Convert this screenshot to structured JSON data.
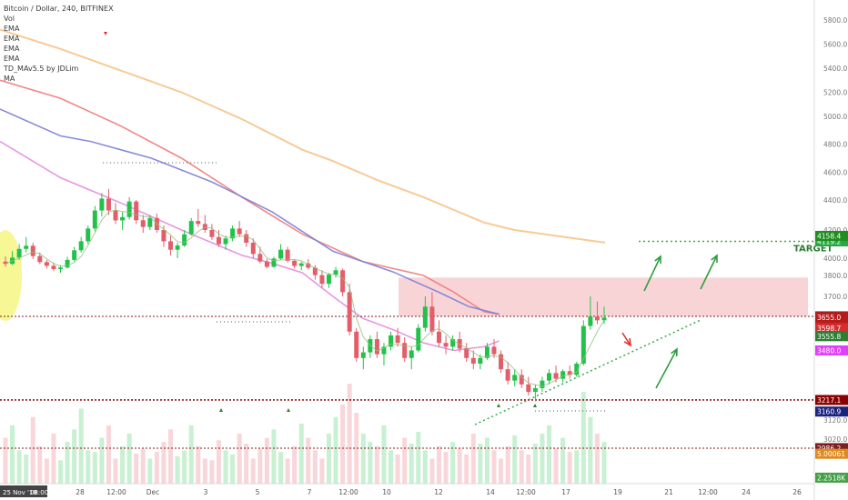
{
  "chart_data": {
    "type": "candlestick",
    "title": "Bitcoin / Dollar, 240, BITFINEX",
    "indicators": [
      "Vol",
      "EMA",
      "EMA",
      "EMA",
      "EMA",
      "TD_MAv5.5 by JDLim",
      "MA"
    ],
    "ylim": [
      2790,
      5950
    ],
    "y_ticks": [
      "5800.0",
      "5600.0",
      "5400.0",
      "5200.0",
      "5000.0",
      "4800.0",
      "4600.0",
      "4400.0",
      "4200.0",
      "4000.0",
      "3800.0",
      "3700.0",
      "3120.0",
      "3020.0"
    ],
    "x_ticks": [
      "28",
      "12:00",
      "Dec",
      "3",
      "5",
      "7",
      "12:00",
      "10",
      "12",
      "14",
      "12:00",
      "17",
      "19",
      "21",
      "12:00",
      "24",
      "26"
    ],
    "x_start_label": "25 Nov '18",
    "x_start_time": "08:00",
    "price_tags": [
      {
        "label": "4119.2",
        "value": 4119.2,
        "color": "#28a745"
      },
      {
        "label": "4158.4",
        "value": 4158.4,
        "color": "#1e8e1e"
      },
      {
        "label": "3661.1",
        "value": 3661.1,
        "color": "#a02020"
      },
      {
        "label": "3658.0",
        "value": 3658.0,
        "color": "#a02020"
      },
      {
        "label": "3655.0",
        "value": 3655.0,
        "color": "#b71c1c"
      },
      {
        "label": "01:43:37",
        "value": 3604,
        "color": "#b71c1c"
      },
      {
        "label": "3598.7",
        "value": 3598.7,
        "color": "#d32f2f"
      },
      {
        "label": "3555.8",
        "value": 3555.8,
        "color": "#2e7d32"
      },
      {
        "label": "3480.0",
        "value": 3480.0,
        "color": "#e040fb"
      },
      {
        "label": "3217.1",
        "value": 3217.1,
        "color": "#8b0000"
      },
      {
        "label": "3160.9",
        "value": 3160.9,
        "color": "#1a237e"
      },
      {
        "label": "2986.2",
        "value": 2986.2,
        "color": "#7b1f1f"
      },
      {
        "label": "5.00061",
        "value": 2955,
        "color": "#e08a1e"
      },
      {
        "label": "2.2518K",
        "value": 2823,
        "color": "#43a047"
      }
    ],
    "horizontal_levels": [
      3661.1,
      3217.1,
      2986.2
    ],
    "resistance_zone": [
      3661,
      3790
    ],
    "target_level": 4119.2,
    "annotations": [
      "TARGET"
    ],
    "colors": {
      "up": "#22c24a",
      "down": "#e35d6a",
      "ema_orange": "#f6c48a",
      "ema_red": "#ef7a7a",
      "ema_blue": "#7b7fd6",
      "ema_pink": "#e58be0",
      "ma_green": "#8ec07c",
      "zone": "#f8c9cd",
      "highlight": "#f3f36a",
      "level_red": "#8b1a1a",
      "arrow_green": "#2e9e3e",
      "arrow_red": "#e03030",
      "dotted_green": "#3aa84a"
    },
    "candles": [
      [
        3960,
        4012,
        3900,
        3934
      ],
      [
        3934,
        4050,
        3920,
        4004
      ],
      [
        4004,
        4100,
        3980,
        4066
      ],
      [
        4066,
        4150,
        4040,
        4088
      ],
      [
        4088,
        4110,
        3990,
        4015
      ],
      [
        4015,
        4040,
        3930,
        3955
      ],
      [
        3955,
        3980,
        3880,
        3912
      ],
      [
        3912,
        3950,
        3850,
        3874
      ],
      [
        3874,
        3920,
        3830,
        3892
      ],
      [
        3892,
        4010,
        3880,
        3980
      ],
      [
        3980,
        4080,
        3960,
        4056
      ],
      [
        4056,
        4150,
        4040,
        4120
      ],
      [
        4120,
        4230,
        4100,
        4210
      ],
      [
        4210,
        4360,
        4190,
        4330
      ],
      [
        4330,
        4450,
        4290,
        4410
      ],
      [
        4410,
        4480,
        4300,
        4330
      ],
      [
        4330,
        4380,
        4240,
        4264
      ],
      [
        4264,
        4320,
        4200,
        4286
      ],
      [
        4286,
        4420,
        4270,
        4390
      ],
      [
        4390,
        4400,
        4240,
        4265
      ],
      [
        4265,
        4300,
        4180,
        4220
      ],
      [
        4220,
        4300,
        4200,
        4280
      ],
      [
        4280,
        4310,
        4180,
        4200
      ],
      [
        4200,
        4230,
        4080,
        4120
      ],
      [
        4120,
        4160,
        4020,
        4060
      ],
      [
        4060,
        4110,
        4000,
        4090
      ],
      [
        4090,
        4200,
        4080,
        4170
      ],
      [
        4170,
        4280,
        4160,
        4260
      ],
      [
        4260,
        4340,
        4220,
        4240
      ],
      [
        4240,
        4300,
        4180,
        4200
      ],
      [
        4200,
        4240,
        4130,
        4150
      ],
      [
        4150,
        4200,
        4080,
        4100
      ],
      [
        4100,
        4160,
        4060,
        4140
      ],
      [
        4140,
        4230,
        4120,
        4210
      ],
      [
        4210,
        4260,
        4150,
        4170
      ],
      [
        4170,
        4200,
        4080,
        4110
      ],
      [
        4110,
        4140,
        4000,
        4030
      ],
      [
        4030,
        4080,
        3940,
        3962
      ],
      [
        3962,
        3990,
        3880,
        3900
      ],
      [
        3900,
        4010,
        3890,
        3996
      ],
      [
        3996,
        4100,
        3980,
        4060
      ],
      [
        4060,
        4080,
        3950,
        3970
      ],
      [
        3970,
        3990,
        3880,
        3910
      ],
      [
        3910,
        3960,
        3860,
        3940
      ],
      [
        3940,
        3990,
        3870,
        3890
      ],
      [
        3890,
        3920,
        3780,
        3804
      ],
      [
        3804,
        3860,
        3740,
        3760
      ],
      [
        3760,
        3830,
        3740,
        3810
      ],
      [
        3810,
        3900,
        3790,
        3860
      ],
      [
        3860,
        3880,
        3700,
        3720
      ],
      [
        3720,
        3760,
        3560,
        3580
      ],
      [
        3580,
        3600,
        3420,
        3440
      ],
      [
        3440,
        3500,
        3380,
        3470
      ],
      [
        3470,
        3560,
        3440,
        3540
      ],
      [
        3540,
        3580,
        3440,
        3460
      ],
      [
        3460,
        3520,
        3400,
        3500
      ],
      [
        3500,
        3580,
        3480,
        3560
      ],
      [
        3560,
        3600,
        3500,
        3520
      ],
      [
        3520,
        3550,
        3420,
        3440
      ],
      [
        3440,
        3500,
        3380,
        3480
      ],
      [
        3480,
        3620,
        3470,
        3600
      ],
      [
        3600,
        3700,
        3580,
        3680
      ],
      [
        3680,
        3720,
        3560,
        3580
      ],
      [
        3580,
        3640,
        3500,
        3520
      ],
      [
        3520,
        3560,
        3460,
        3500
      ],
      [
        3500,
        3560,
        3480,
        3540
      ],
      [
        3540,
        3580,
        3470,
        3490
      ],
      [
        3490,
        3520,
        3420,
        3440
      ],
      [
        3440,
        3480,
        3380,
        3410
      ],
      [
        3410,
        3460,
        3380,
        3440
      ],
      [
        3440,
        3520,
        3430,
        3500
      ],
      [
        3500,
        3540,
        3440,
        3460
      ],
      [
        3460,
        3480,
        3360,
        3380
      ],
      [
        3380,
        3420,
        3300,
        3320
      ],
      [
        3320,
        3380,
        3290,
        3350
      ],
      [
        3350,
        3380,
        3280,
        3300
      ],
      [
        3300,
        3340,
        3240,
        3260
      ],
      [
        3260,
        3300,
        3210,
        3280
      ],
      [
        3280,
        3340,
        3260,
        3320
      ],
      [
        3320,
        3380,
        3300,
        3360
      ],
      [
        3360,
        3400,
        3310,
        3330
      ],
      [
        3330,
        3380,
        3310,
        3370
      ],
      [
        3370,
        3400,
        3330,
        3350
      ],
      [
        3350,
        3420,
        3340,
        3410
      ],
      [
        3410,
        3640,
        3400,
        3610
      ],
      [
        3610,
        3700,
        3590,
        3660
      ],
      [
        3660,
        3690,
        3620,
        3640
      ],
      [
        3640,
        3680,
        3620,
        3655
      ]
    ],
    "volume": [
      55,
      70,
      40,
      35,
      80,
      45,
      30,
      60,
      28,
      50,
      65,
      90,
      40,
      38,
      55,
      70,
      30,
      45,
      60,
      36,
      42,
      30,
      38,
      50,
      65,
      33,
      40,
      70,
      45,
      30,
      28,
      52,
      40,
      35,
      60,
      48,
      30,
      42,
      55,
      65,
      38,
      30,
      45,
      72,
      55,
      40,
      30,
      60,
      80,
      95,
      120,
      85,
      60,
      50,
      45,
      70,
      40,
      35,
      55,
      48,
      62,
      40,
      30,
      45,
      38,
      50,
      42,
      35,
      60,
      48,
      55,
      40,
      30,
      45,
      58,
      40,
      35,
      48,
      60,
      70,
      42,
      55,
      38,
      40,
      110,
      80,
      60,
      50
    ],
    "ema_orange_pts": [
      [
        0,
        5720
      ],
      [
        20,
        5560
      ],
      [
        40,
        5380
      ],
      [
        60,
        5200
      ],
      [
        80,
        4980
      ],
      [
        100,
        4760
      ],
      [
        110,
        4680
      ],
      [
        125,
        4540
      ],
      [
        140,
        4420
      ],
      [
        160,
        4250
      ],
      [
        170,
        4200
      ],
      [
        200,
        4110
      ]
    ],
    "ema_red_pts": [
      [
        0,
        5300
      ],
      [
        20,
        5150
      ],
      [
        40,
        4930
      ],
      [
        60,
        4700
      ],
      [
        80,
        4420
      ],
      [
        100,
        4170
      ],
      [
        120,
        3960
      ],
      [
        140,
        3800
      ],
      [
        150,
        3720
      ],
      [
        160,
        3670
      ],
      [
        165,
        3665
      ]
    ],
    "ema_blue_pts": [
      [
        0,
        5060
      ],
      [
        20,
        4860
      ],
      [
        30,
        4820
      ],
      [
        50,
        4700
      ],
      [
        70,
        4530
      ],
      [
        90,
        4320
      ],
      [
        110,
        4050
      ],
      [
        130,
        3840
      ],
      [
        145,
        3720
      ],
      [
        155,
        3680
      ],
      [
        165,
        3665
      ]
    ],
    "ema_pink_pts": [
      [
        0,
        4820
      ],
      [
        20,
        4560
      ],
      [
        40,
        4380
      ],
      [
        60,
        4200
      ],
      [
        80,
        4020
      ],
      [
        90,
        3940
      ],
      [
        100,
        3830
      ],
      [
        110,
        3700
      ],
      [
        120,
        3650
      ],
      [
        130,
        3590
      ],
      [
        140,
        3520
      ],
      [
        150,
        3480
      ],
      [
        160,
        3500
      ],
      [
        165,
        3530
      ]
    ],
    "support_line": [
      [
        132,
        3120
      ],
      [
        195,
        3640
      ]
    ],
    "top_dotted": [
      [
        28,
        4650
      ],
      [
        60,
        4650
      ]
    ]
  }
}
